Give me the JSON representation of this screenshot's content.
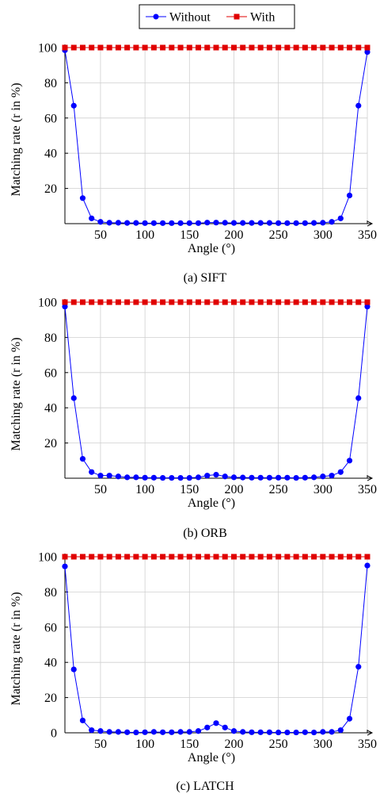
{
  "legend": {
    "placement": "top-center",
    "entries": [
      {
        "label": "Without",
        "color": "#0000ff",
        "marker": "circle"
      },
      {
        "label": "With",
        "color": "#e00000",
        "marker": "square"
      }
    ]
  },
  "chart_data": [
    {
      "type": "line",
      "caption": "(a) SIFT",
      "xlabel": "Angle (°)",
      "ylabel": "Matching rate (r in %)",
      "xlim": [
        10,
        350
      ],
      "ylim": [
        0,
        100
      ],
      "xticks": [
        50,
        100,
        150,
        200,
        250,
        300,
        350
      ],
      "yticks": [
        20,
        40,
        60,
        80,
        100
      ],
      "ytick_zero_shown": false,
      "grid": true,
      "x": [
        10,
        20,
        30,
        40,
        50,
        60,
        70,
        80,
        90,
        100,
        110,
        120,
        130,
        140,
        150,
        160,
        170,
        180,
        190,
        200,
        210,
        220,
        230,
        240,
        250,
        260,
        270,
        280,
        290,
        300,
        310,
        320,
        330,
        340,
        350
      ],
      "series": [
        {
          "name": "Without",
          "color": "#0000ff",
          "marker": "circle",
          "values": [
            98.5,
            67,
            14.5,
            3,
            1,
            0.5,
            0.5,
            0.4,
            0.4,
            0.3,
            0.3,
            0.3,
            0.3,
            0.3,
            0.3,
            0.3,
            0.6,
            0.6,
            0.5,
            0.4,
            0.4,
            0.4,
            0.4,
            0.4,
            0.3,
            0.3,
            0.3,
            0.3,
            0.4,
            0.5,
            1,
            3,
            16,
            67,
            97.5
          ]
        },
        {
          "name": "With",
          "color": "#e00000",
          "marker": "square",
          "values": [
            100,
            100,
            100,
            100,
            100,
            100,
            100,
            100,
            100,
            100,
            100,
            100,
            100,
            100,
            100,
            100,
            100,
            100,
            100,
            100,
            100,
            100,
            100,
            100,
            100,
            100,
            100,
            100,
            100,
            100,
            100,
            100,
            100,
            100,
            100
          ]
        }
      ]
    },
    {
      "type": "line",
      "caption": "(b) ORB",
      "xlabel": "Angle (°)",
      "ylabel": "Matching rate (r in %)",
      "xlim": [
        10,
        350
      ],
      "ylim": [
        0,
        100
      ],
      "xticks": [
        50,
        100,
        150,
        200,
        250,
        300,
        350
      ],
      "yticks": [
        20,
        40,
        60,
        80,
        100
      ],
      "ytick_zero_shown": false,
      "grid": true,
      "x": [
        10,
        20,
        30,
        40,
        50,
        60,
        70,
        80,
        90,
        100,
        110,
        120,
        130,
        140,
        150,
        160,
        170,
        180,
        190,
        200,
        210,
        220,
        230,
        240,
        250,
        260,
        270,
        280,
        290,
        300,
        310,
        320,
        330,
        340,
        350
      ],
      "series": [
        {
          "name": "Without",
          "color": "#0000ff",
          "marker": "circle",
          "values": [
            97.5,
            45.5,
            11,
            3.5,
            1.5,
            1.5,
            1,
            0.5,
            0.5,
            0.3,
            0.3,
            0.2,
            0.2,
            0.2,
            0.2,
            0.5,
            1.5,
            2,
            1,
            0.5,
            0.4,
            0.3,
            0.3,
            0.3,
            0.3,
            0.3,
            0.2,
            0.3,
            0.5,
            1,
            1.5,
            3.5,
            10,
            45.5,
            97.5
          ]
        },
        {
          "name": "With",
          "color": "#e00000",
          "marker": "square",
          "values": [
            100,
            100,
            100,
            100,
            100,
            100,
            100,
            100,
            100,
            100,
            100,
            100,
            100,
            100,
            100,
            100,
            100,
            100,
            100,
            100,
            100,
            100,
            100,
            100,
            100,
            100,
            100,
            100,
            100,
            100,
            100,
            100,
            100,
            100,
            100
          ]
        }
      ]
    },
    {
      "type": "line",
      "caption": "(c) LATCH",
      "xlabel": "Angle (°)",
      "ylabel": "Matching rate (r in %)",
      "xlim": [
        10,
        350
      ],
      "ylim": [
        0,
        100
      ],
      "xticks": [
        50,
        100,
        150,
        200,
        250,
        300,
        350
      ],
      "yticks": [
        0,
        20,
        40,
        60,
        80,
        100
      ],
      "ytick_zero_shown": true,
      "grid": true,
      "x": [
        10,
        20,
        30,
        40,
        50,
        60,
        70,
        80,
        90,
        100,
        110,
        120,
        130,
        140,
        150,
        160,
        170,
        180,
        190,
        200,
        210,
        220,
        230,
        240,
        250,
        260,
        270,
        280,
        290,
        300,
        310,
        320,
        330,
        340,
        350
      ],
      "series": [
        {
          "name": "Without",
          "color": "#0000ff",
          "marker": "circle",
          "values": [
            94.5,
            36,
            7,
            1.5,
            1,
            0.5,
            0.5,
            0.3,
            0.2,
            0.3,
            0.5,
            0.3,
            0.3,
            0.5,
            0.5,
            1,
            3,
            5.5,
            3,
            1,
            0.5,
            0.3,
            0.3,
            0.3,
            0.2,
            0.2,
            0.2,
            0.3,
            0.2,
            0.5,
            0.5,
            1.5,
            8,
            37.5,
            95
          ]
        },
        {
          "name": "With",
          "color": "#e00000",
          "marker": "square",
          "values": [
            100,
            100,
            100,
            100,
            100,
            100,
            100,
            100,
            100,
            100,
            100,
            100,
            100,
            100,
            100,
            100,
            100,
            100,
            100,
            100,
            100,
            100,
            100,
            100,
            100,
            100,
            100,
            100,
            100,
            100,
            100,
            100,
            100,
            100,
            100
          ]
        }
      ]
    }
  ]
}
